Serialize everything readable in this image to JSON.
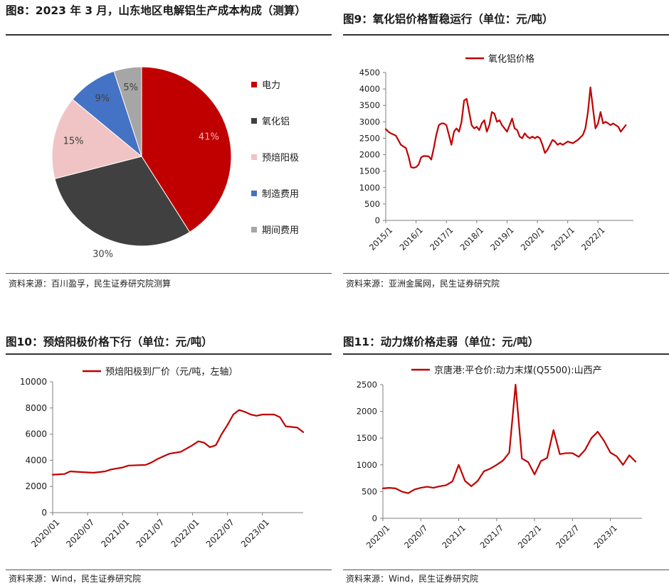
{
  "panels": {
    "p8": {
      "title": "图8：2023 年 3 月，山东地区电解铝生产成本构成（测算）",
      "source": "资料来源：百川盈孚，民生证券研究院测算"
    },
    "p9": {
      "title": "图9：氧化铝价格暂稳运行（单位：元/吨）",
      "source": "资料来源：亚洲金属网，民生证券研究院"
    },
    "p10": {
      "title": "图10：预焙阳极价格下行（单位：元/吨）",
      "source": "资料来源：Wind，民生证券研究院"
    },
    "p11": {
      "title": "图11：动力煤价格走弱（单位：元/吨）",
      "source": "资料来源：Wind，民生证券研究院"
    }
  },
  "chart_data": [
    {
      "id": "p8",
      "type": "pie",
      "categories": [
        "电力",
        "氧化铝",
        "预焙阳极",
        "制造费用",
        "期间费用"
      ],
      "values": [
        41,
        30,
        15,
        9,
        5
      ],
      "labels": [
        "41%",
        "30%",
        "15%",
        "9%",
        "5%"
      ],
      "colors": [
        "#c00000",
        "#404040",
        "#f0c4c4",
        "#4472c4",
        "#a6a6a6"
      ],
      "legend_position": "right"
    },
    {
      "id": "p9",
      "type": "line",
      "series": [
        {
          "name": "氧化铝价格",
          "color": "#c00000",
          "points": [
            [
              "2015-01",
              2780
            ],
            [
              "2015-02",
              2700
            ],
            [
              "2015-03",
              2650
            ],
            [
              "2015-05",
              2580
            ],
            [
              "2015-07",
              2300
            ],
            [
              "2015-09",
              2200
            ],
            [
              "2015-10",
              1950
            ],
            [
              "2015-11",
              1620
            ],
            [
              "2015-12",
              1600
            ],
            [
              "2016-01",
              1620
            ],
            [
              "2016-02",
              1700
            ],
            [
              "2016-03",
              1920
            ],
            [
              "2016-04",
              1960
            ],
            [
              "2016-06",
              1950
            ],
            [
              "2016-07",
              1850
            ],
            [
              "2016-08",
              2200
            ],
            [
              "2016-09",
              2600
            ],
            [
              "2016-10",
              2900
            ],
            [
              "2016-11",
              2950
            ],
            [
              "2016-12",
              2950
            ],
            [
              "2017-01",
              2900
            ],
            [
              "2017-02",
              2600
            ],
            [
              "2017-03",
              2300
            ],
            [
              "2017-04",
              2700
            ],
            [
              "2017-05",
              2800
            ],
            [
              "2017-06",
              2700
            ],
            [
              "2017-07",
              3000
            ],
            [
              "2017-08",
              3650
            ],
            [
              "2017-09",
              3700
            ],
            [
              "2017-10",
              3300
            ],
            [
              "2017-11",
              2900
            ],
            [
              "2017-12",
              2800
            ],
            [
              "2018-01",
              2850
            ],
            [
              "2018-02",
              2750
            ],
            [
              "2018-03",
              2950
            ],
            [
              "2018-04",
              3050
            ],
            [
              "2018-05",
              2700
            ],
            [
              "2018-06",
              2900
            ],
            [
              "2018-07",
              3300
            ],
            [
              "2018-08",
              3250
            ],
            [
              "2018-09",
              3000
            ],
            [
              "2018-10",
              3050
            ],
            [
              "2018-11",
              2900
            ],
            [
              "2018-12",
              2800
            ],
            [
              "2019-01",
              2700
            ],
            [
              "2019-02",
              2900
            ],
            [
              "2019-03",
              3100
            ],
            [
              "2019-04",
              2800
            ],
            [
              "2019-05",
              2750
            ],
            [
              "2019-06",
              2550
            ],
            [
              "2019-07",
              2500
            ],
            [
              "2019-08",
              2650
            ],
            [
              "2019-09",
              2550
            ],
            [
              "2019-10",
              2500
            ],
            [
              "2019-11",
              2550
            ],
            [
              "2019-12",
              2500
            ],
            [
              "2020-01",
              2550
            ],
            [
              "2020-02",
              2500
            ],
            [
              "2020-03",
              2300
            ],
            [
              "2020-04",
              2050
            ],
            [
              "2020-05",
              2150
            ],
            [
              "2020-06",
              2300
            ],
            [
              "2020-07",
              2450
            ],
            [
              "2020-08",
              2400
            ],
            [
              "2020-09",
              2300
            ],
            [
              "2020-10",
              2350
            ],
            [
              "2020-11",
              2300
            ],
            [
              "2020-12",
              2350
            ],
            [
              "2021-01",
              2400
            ],
            [
              "2021-03",
              2350
            ],
            [
              "2021-05",
              2450
            ],
            [
              "2021-07",
              2600
            ],
            [
              "2021-08",
              2800
            ],
            [
              "2021-09",
              3300
            ],
            [
              "2021-10",
              4050
            ],
            [
              "2021-11",
              3400
            ],
            [
              "2021-12",
              2800
            ],
            [
              "2022-01",
              2950
            ],
            [
              "2022-02",
              3300
            ],
            [
              "2022-03",
              2950
            ],
            [
              "2022-04",
              3000
            ],
            [
              "2022-05",
              2950
            ],
            [
              "2022-06",
              2900
            ],
            [
              "2022-07",
              2950
            ],
            [
              "2022-08",
              2900
            ],
            [
              "2022-09",
              2850
            ],
            [
              "2022-10",
              2700
            ],
            [
              "2022-11",
              2800
            ],
            [
              "2022-12",
              2900
            ]
          ]
        }
      ],
      "x_range": [
        "2015-01",
        "2023-03"
      ],
      "x_ticks": [
        "2015/1",
        "2016/1",
        "2017/1",
        "2018/1",
        "2019/1",
        "2020/1",
        "2021/1",
        "2022/1"
      ],
      "y_ticks": [
        0,
        500,
        1000,
        1500,
        2000,
        2500,
        3000,
        3500,
        4000,
        4500
      ],
      "ylim": [
        0,
        4500
      ],
      "legend_position": "top",
      "grid": false
    },
    {
      "id": "p10",
      "type": "line",
      "series": [
        {
          "name": "预焙阳极到厂价（元/吨，左轴）",
          "color": "#c00000",
          "points": [
            [
              "2020-01",
              2900
            ],
            [
              "2020-03",
              2950
            ],
            [
              "2020-04",
              3150
            ],
            [
              "2020-06",
              3100
            ],
            [
              "2020-08",
              3050
            ],
            [
              "2020-10",
              3150
            ],
            [
              "2020-11",
              3300
            ],
            [
              "2021-01",
              3450
            ],
            [
              "2021-02",
              3600
            ],
            [
              "2021-05",
              3650
            ],
            [
              "2021-06",
              3850
            ],
            [
              "2021-07",
              4100
            ],
            [
              "2021-08",
              4300
            ],
            [
              "2021-09",
              4500
            ],
            [
              "2021-11",
              4650
            ],
            [
              "2021-12",
              4900
            ],
            [
              "2022-01",
              5150
            ],
            [
              "2022-02",
              5450
            ],
            [
              "2022-03",
              5350
            ],
            [
              "2022-04",
              5000
            ],
            [
              "2022-05",
              5150
            ],
            [
              "2022-06",
              6000
            ],
            [
              "2022-07",
              6700
            ],
            [
              "2022-08",
              7500
            ],
            [
              "2022-09",
              7850
            ],
            [
              "2022-10",
              7700
            ],
            [
              "2022-11",
              7500
            ],
            [
              "2022-12",
              7400
            ],
            [
              "2023-01",
              7500
            ],
            [
              "2023-02",
              7500
            ],
            [
              "2023-03",
              7500
            ],
            [
              "2023-04",
              7300
            ],
            [
              "2023-05",
              6600
            ],
            [
              "2023-06",
              6550
            ],
            [
              "2023-07",
              6500
            ],
            [
              "2023-08",
              6150
            ]
          ]
        }
      ],
      "x_range": [
        "2020-01",
        "2023-08"
      ],
      "x_ticks": [
        "2020/01",
        "2020/07",
        "2021/01",
        "2021/07",
        "2022/01",
        "2022/07",
        "2023/01"
      ],
      "y_ticks": [
        0,
        2000,
        4000,
        6000,
        8000,
        10000
      ],
      "ylim": [
        0,
        10000
      ],
      "legend_position": "top",
      "grid": false
    },
    {
      "id": "p11",
      "type": "line",
      "series": [
        {
          "name": "京唐港:平仓价:动力末煤(Q5500):山西产",
          "color": "#c00000",
          "points": [
            [
              "2020-01",
              560
            ],
            [
              "2020-02",
              570
            ],
            [
              "2020-03",
              560
            ],
            [
              "2020-04",
              500
            ],
            [
              "2020-05",
              470
            ],
            [
              "2020-06",
              540
            ],
            [
              "2020-07",
              570
            ],
            [
              "2020-08",
              590
            ],
            [
              "2020-09",
              570
            ],
            [
              "2020-10",
              600
            ],
            [
              "2020-11",
              620
            ],
            [
              "2020-12",
              690
            ],
            [
              "2021-01",
              1000
            ],
            [
              "2021-02",
              700
            ],
            [
              "2021-03",
              600
            ],
            [
              "2021-04",
              700
            ],
            [
              "2021-05",
              880
            ],
            [
              "2021-06",
              930
            ],
            [
              "2021-07",
              1000
            ],
            [
              "2021-08",
              1080
            ],
            [
              "2021-09",
              1230
            ],
            [
              "2021-10",
              2500
            ],
            [
              "2021-11",
              1120
            ],
            [
              "2021-12",
              1050
            ],
            [
              "2022-01",
              820
            ],
            [
              "2022-02",
              1070
            ],
            [
              "2022-03",
              1130
            ],
            [
              "2022-04",
              1650
            ],
            [
              "2022-05",
              1200
            ],
            [
              "2022-06",
              1220
            ],
            [
              "2022-07",
              1220
            ],
            [
              "2022-08",
              1150
            ],
            [
              "2022-09",
              1280
            ],
            [
              "2022-10",
              1500
            ],
            [
              "2022-11",
              1620
            ],
            [
              "2022-12",
              1450
            ],
            [
              "2023-01",
              1230
            ],
            [
              "2023-02",
              1160
            ],
            [
              "2023-03",
              1000
            ],
            [
              "2023-04",
              1180
            ],
            [
              "2023-05",
              1060
            ]
          ]
        }
      ],
      "x_range": [
        "2020-01",
        "2023-06"
      ],
      "x_ticks": [
        "2020/1",
        "2020/7",
        "2021/1",
        "2021/7",
        "2022/1",
        "2022/7",
        "2023/1"
      ],
      "y_ticks": [
        0,
        500,
        1000,
        1500,
        2000,
        2500
      ],
      "ylim": [
        0,
        2500
      ],
      "legend_position": "top",
      "grid": false
    }
  ]
}
